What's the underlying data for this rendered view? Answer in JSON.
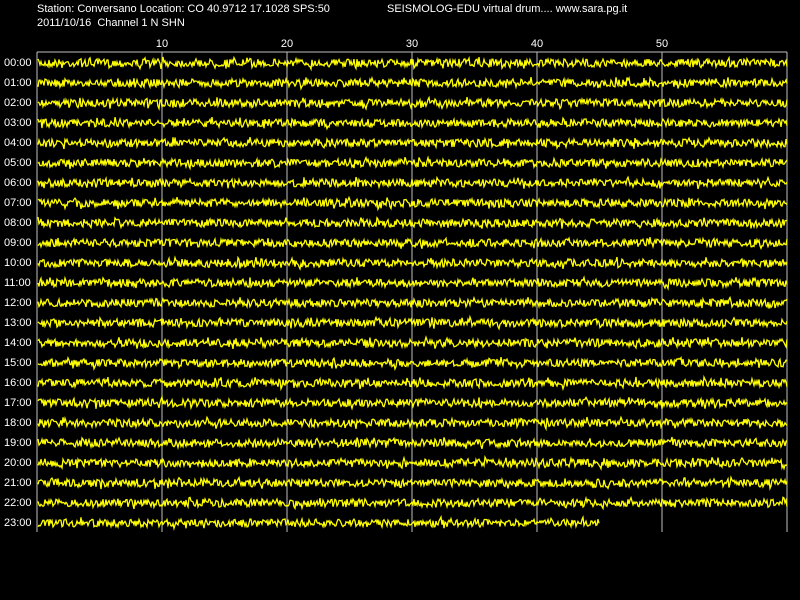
{
  "chart_data": {
    "type": "drum",
    "title": "Station: Conversano Location: CO 40.9712 17.1028 SPS:50",
    "subtitle": "SEISMOLOG-EDU virtual drum.... www.sara.pg.it",
    "caption": "2011/10/16  Channel 1 N SHN",
    "xlim": [
      0,
      60
    ],
    "xticks": [
      10,
      20,
      30,
      40,
      50
    ],
    "grid": true,
    "color": "#ffff00",
    "rows": [
      "00:00",
      "01:00",
      "02:00",
      "03:00",
      "04:00",
      "05:00",
      "06:00",
      "07:00",
      "08:00",
      "09:00",
      "10:00",
      "11:00",
      "12:00",
      "13:00",
      "14:00",
      "15:00",
      "16:00",
      "17:00",
      "18:00",
      "19:00",
      "20:00",
      "21:00",
      "22:00",
      "23:00"
    ],
    "row_end": [
      60,
      60,
      60,
      60,
      60,
      60,
      60,
      60,
      60,
      60,
      60,
      60,
      60,
      60,
      60,
      60,
      60,
      60,
      60,
      60,
      60,
      60,
      60,
      45
    ]
  }
}
